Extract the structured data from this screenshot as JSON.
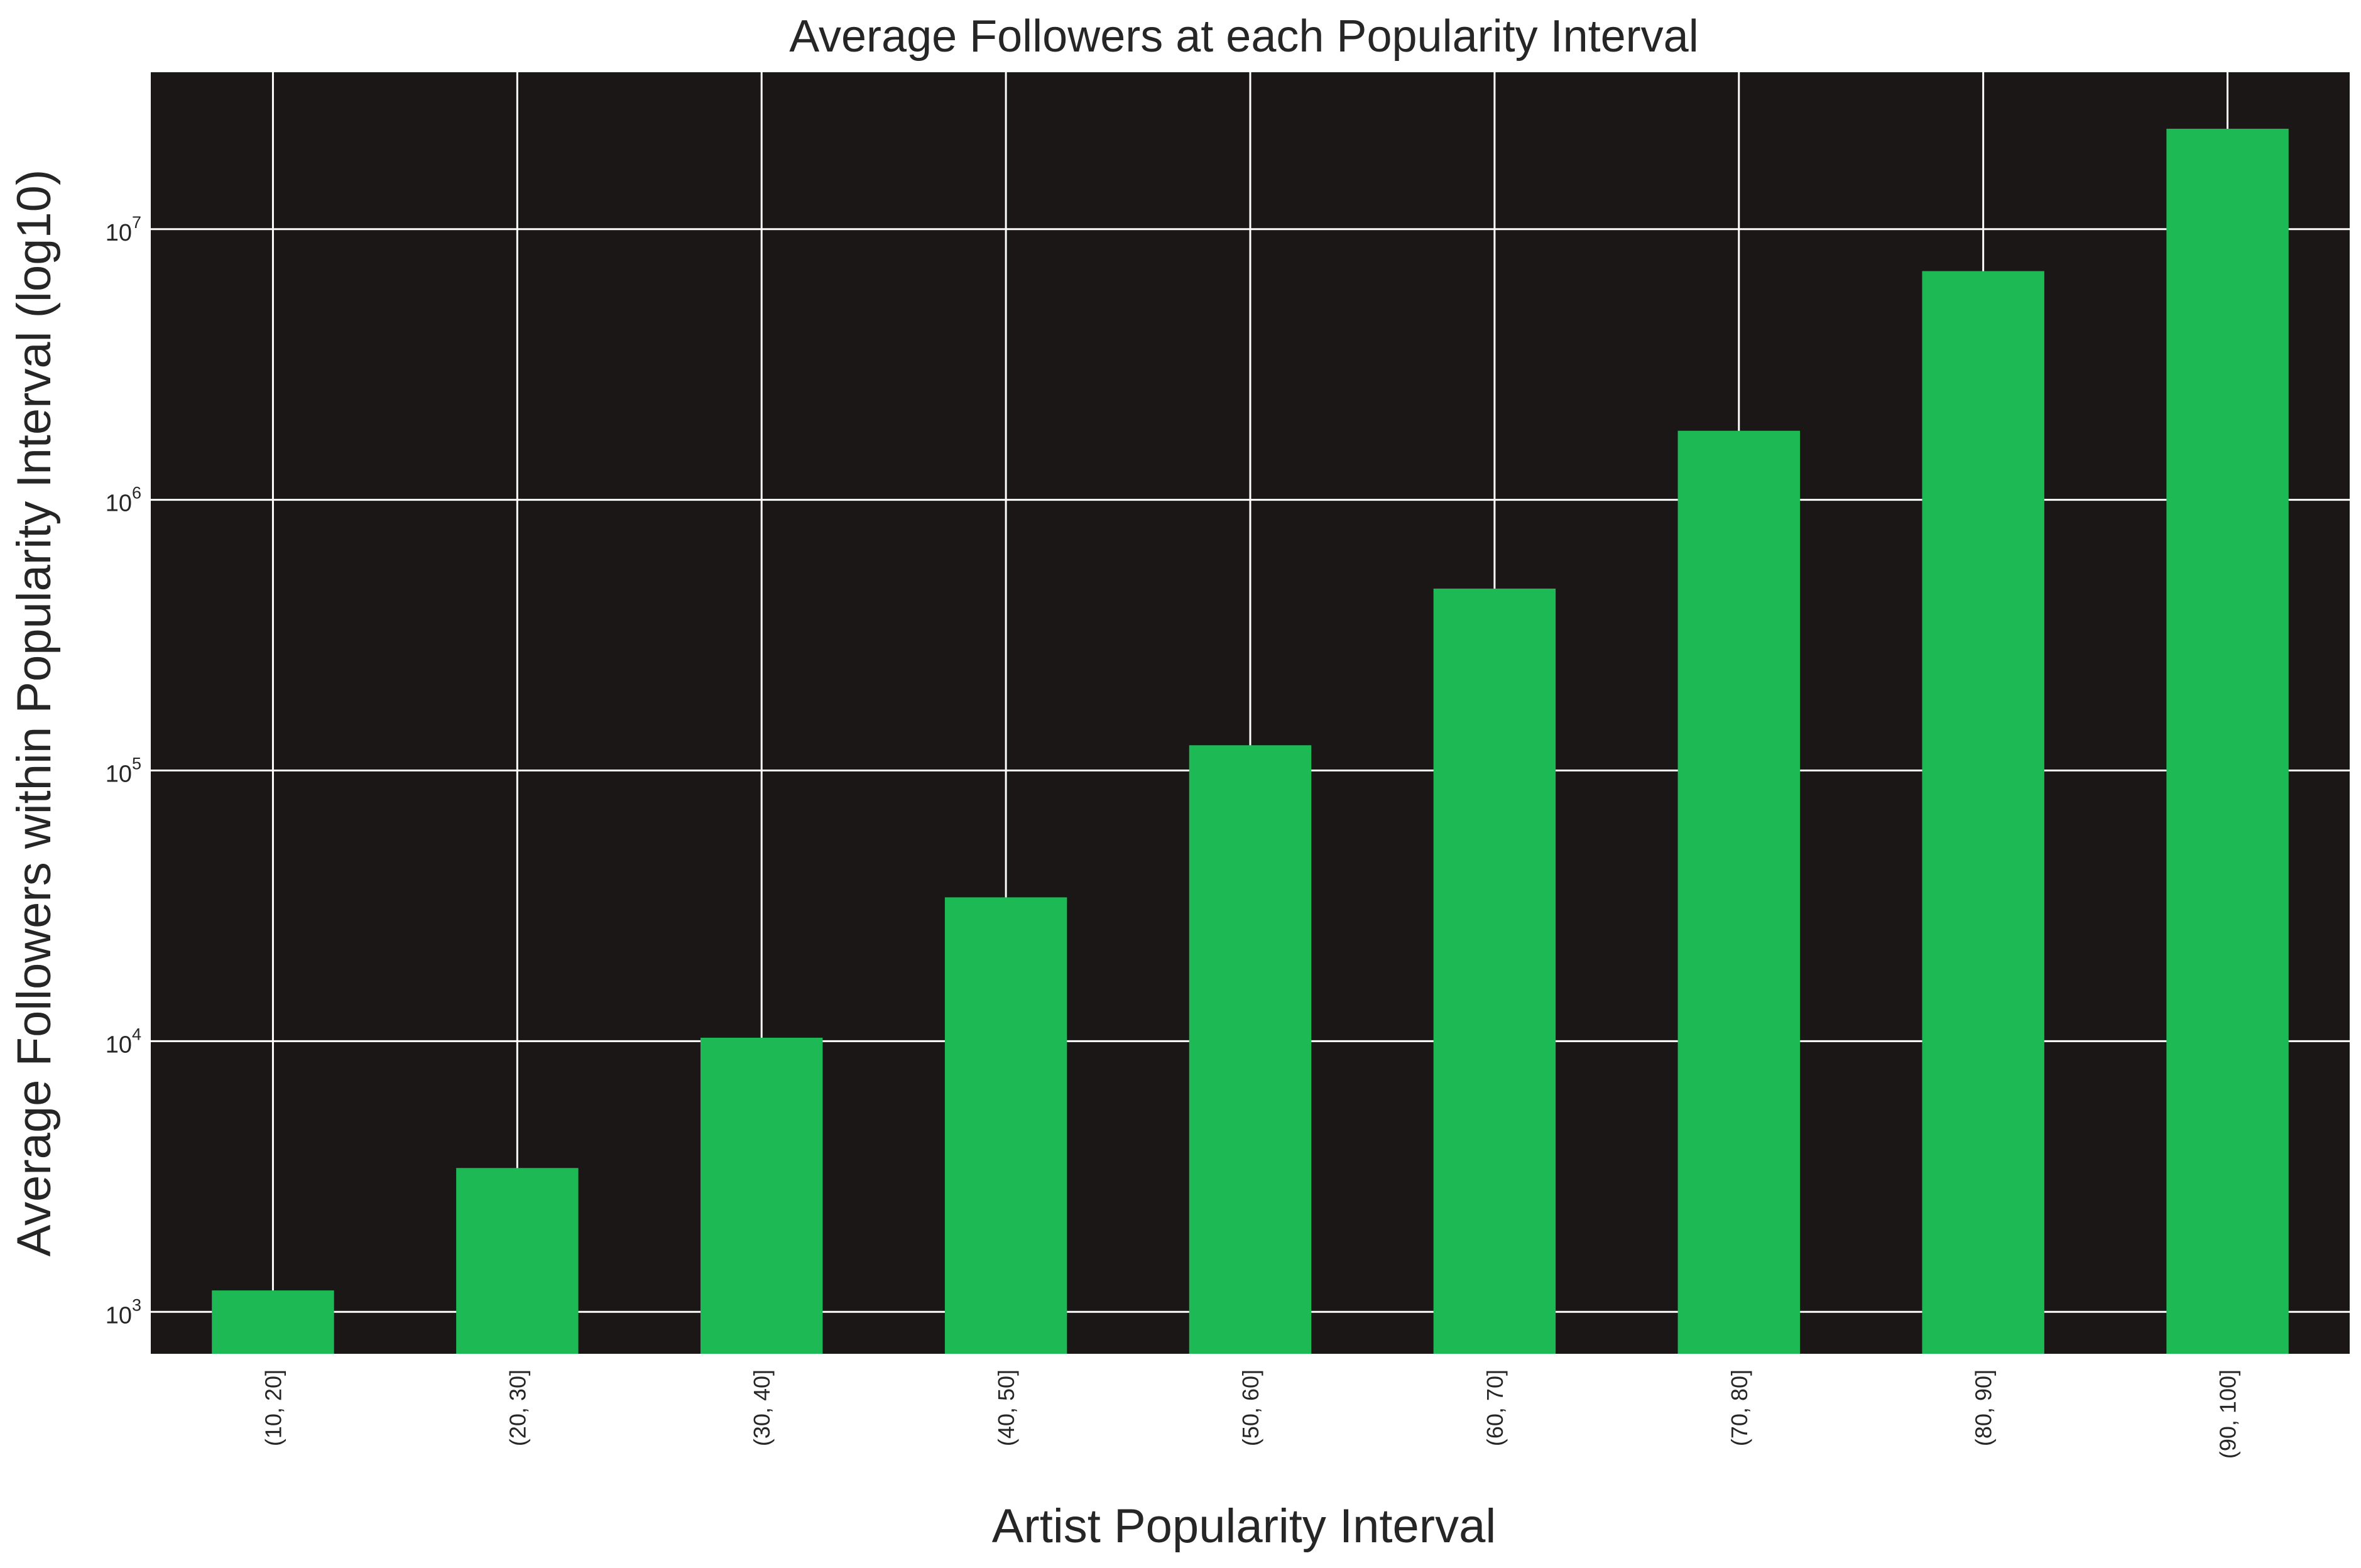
{
  "chart_data": {
    "type": "bar",
    "title": "Average Followers at each Popularity Interval",
    "xlabel": "Artist Popularity Interval",
    "ylabel": "Average Followers within Popularity Interval (log10)",
    "yscale": "log",
    "ylim": [
      700,
      38000000
    ],
    "yticks": [
      {
        "base": "10",
        "exp": "3",
        "value": 1000
      },
      {
        "base": "10",
        "exp": "4",
        "value": 10000
      },
      {
        "base": "10",
        "exp": "5",
        "value": 100000
      },
      {
        "base": "10",
        "exp": "6",
        "value": 1000000
      },
      {
        "base": "10",
        "exp": "7",
        "value": 10000000
      }
    ],
    "categories": [
      "(10, 20]",
      "(20, 30]",
      "(30, 40]",
      "(40, 50]",
      "(50, 60]",
      "(60, 70]",
      "(70, 80]",
      "(80, 90]",
      "(90, 100]"
    ],
    "values": [
      1200,
      3400,
      10300,
      34000,
      124000,
      470000,
      1800000,
      7000000,
      23500000
    ],
    "grid": true,
    "colors": {
      "bar": "#1db954",
      "plot_background": "#1a1716",
      "grid": "#ffffff",
      "text": "#262626"
    }
  }
}
